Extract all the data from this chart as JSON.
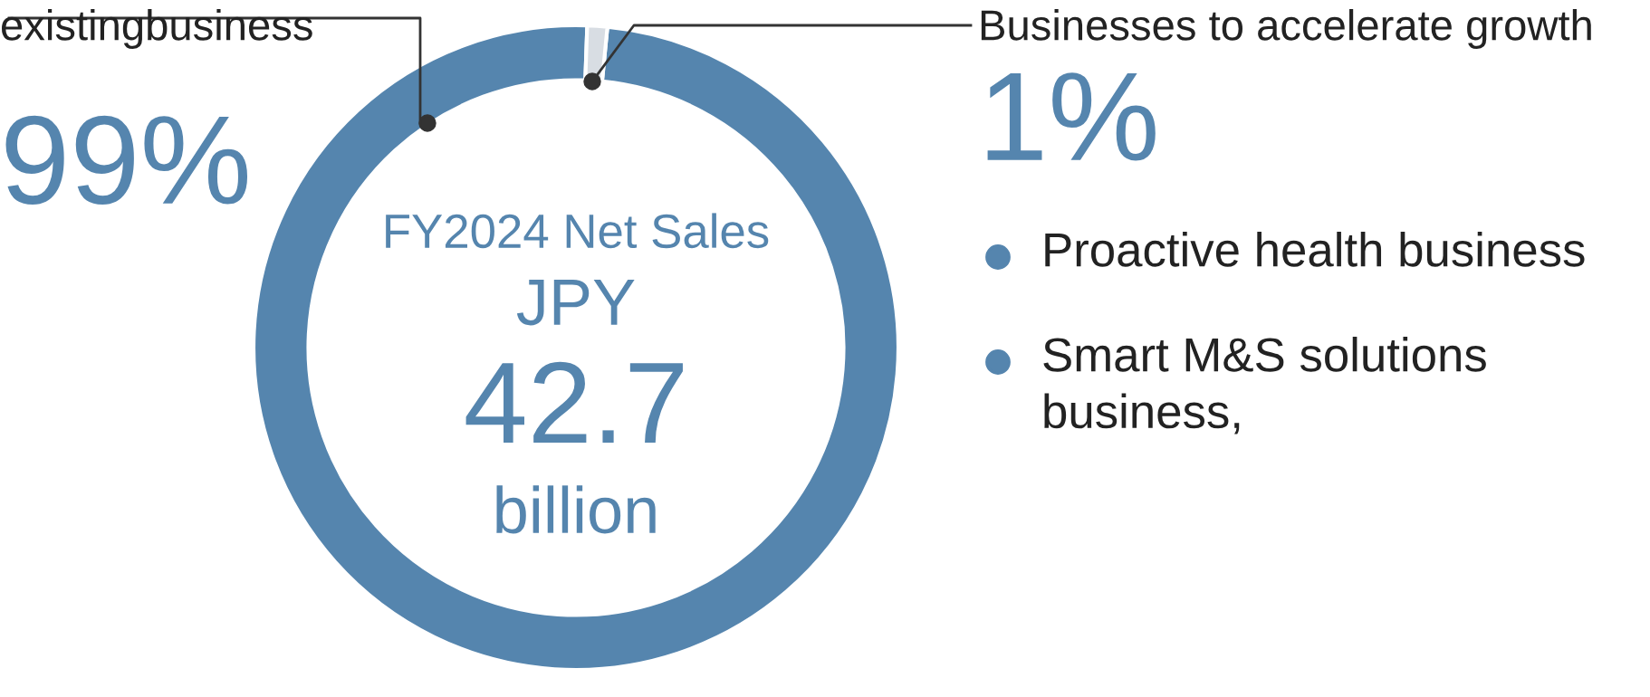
{
  "chart_data": {
    "type": "donut",
    "categories": [
      "existingbusiness",
      "Businesses to accelerate growth"
    ],
    "values": [
      99,
      1
    ],
    "colors": [
      "#5585ae",
      "#d8dde3"
    ],
    "value_labels": [
      "99%",
      "1%"
    ],
    "annotations": [
      "FY2024 Net Sales",
      "JPY",
      "42.7",
      "billion",
      "Proactive health business",
      "Smart M&S solutions\nbusiness,"
    ]
  }
}
